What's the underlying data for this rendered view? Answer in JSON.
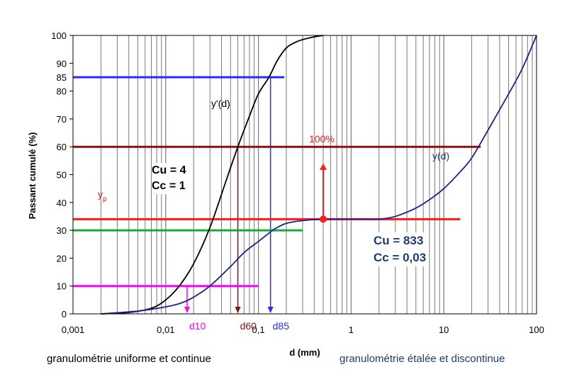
{
  "chart_data": {
    "type": "line",
    "xscale": "log",
    "xlim": [
      0.001,
      100
    ],
    "ylim": [
      0,
      100
    ],
    "xlabel": "d (mm)",
    "ylabel": "Passant cumulé (%)",
    "x_ticks": [
      "0,001",
      "0,01",
      "0,1",
      "1",
      "10",
      "100"
    ],
    "y_ticks": [
      "0",
      "10",
      "20",
      "30",
      "40",
      "50",
      "60",
      "70",
      "80",
      "90",
      "100"
    ],
    "grid": "vertical log grid",
    "series": [
      {
        "name": "y'(d)",
        "color": "#000000",
        "x": [
          0.002,
          0.004,
          0.007,
          0.01,
          0.014,
          0.02,
          0.03,
          0.045,
          0.06,
          0.08,
          0.1,
          0.13,
          0.16,
          0.2,
          0.25,
          0.3,
          0.4,
          0.5
        ],
        "y": [
          0,
          0.5,
          2,
          5,
          10,
          18,
          31,
          48,
          60,
          71,
          79,
          85,
          91,
          95.5,
          97.5,
          98.5,
          99.5,
          100
        ]
      },
      {
        "name": "y(d)",
        "color": "#1f1f8f",
        "x": [
          0.002,
          0.005,
          0.01,
          0.015,
          0.02,
          0.03,
          0.05,
          0.07,
          0.1,
          0.13,
          0.15,
          0.2,
          0.3,
          0.5,
          0.7,
          1,
          1.5,
          2,
          3,
          5,
          7,
          10,
          15,
          20,
          30,
          50,
          70,
          100
        ],
        "y": [
          0,
          1,
          2.5,
          4,
          6,
          10,
          17,
          22,
          26,
          29,
          30.5,
          32.5,
          33.5,
          34,
          34,
          34,
          34,
          34,
          35,
          38,
          41,
          45,
          51,
          56,
          66,
          79,
          88,
          100
        ]
      }
    ],
    "guides": [
      {
        "label": "85",
        "y": 85,
        "x_end": 0.19,
        "color": "#2a2aff",
        "label_color": "#2a2aff",
        "x_drop": 0.135,
        "drop_label": "d85",
        "drop_color": "#2a2aff",
        "drop_arrow": true
      },
      {
        "label": "",
        "y": 60,
        "x_end": 25,
        "color": "#8b1010",
        "x_drop": 0.06,
        "drop_label": "d60",
        "drop_color": "#8b1010",
        "drop_arrow": true
      },
      {
        "label": "",
        "y": 34,
        "x_end": 15,
        "color": "#ff1a1a"
      },
      {
        "label": "",
        "y": 30,
        "x_end": 0.3,
        "color": "#1aaa3a"
      },
      {
        "label": "",
        "y": 10,
        "x_end": 0.1,
        "color": "#ff00ff",
        "x_drop": 0.017,
        "drop_label": "d10",
        "drop_color": "#ff00ff",
        "drop_arrow": true
      }
    ],
    "annotations": {
      "left_curve_label": "y'(d)",
      "right_curve_label": "y(d)",
      "yp_label": "y",
      "yp_sub": "p",
      "percent_label": "100%",
      "marker": {
        "x": 0.5,
        "y": 34,
        "arrow_to_y": 54
      }
    },
    "box_left": {
      "line1": "Cu = 4",
      "line2": "Cc = 1"
    },
    "box_right": {
      "line1": "Cu = 833",
      "line2": "Cc = 0,03"
    }
  },
  "captions": {
    "left": "granulométrie uniforme et continue",
    "right": "granulométrie étalée et discontinue"
  },
  "colors": {
    "grid": "#7a7a7a",
    "axis": "#000000",
    "navy": "#1f3a7a",
    "red": "#ff1a1a",
    "darkred": "#8b1010",
    "blue": "#2a2aff",
    "magenta": "#ff00ff",
    "green": "#1aaa3a"
  }
}
